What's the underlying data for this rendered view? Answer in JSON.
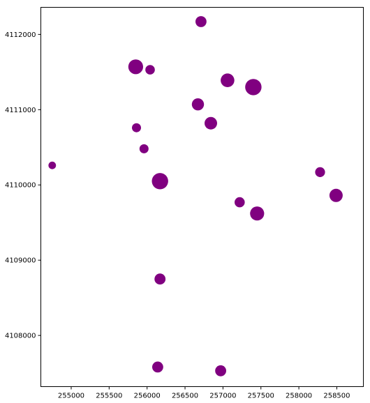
{
  "chart_data": {
    "type": "scatter",
    "title": "",
    "xlabel": "",
    "ylabel": "",
    "xlim": [
      254600,
      258850
    ],
    "ylim": [
      4107320,
      4112360
    ],
    "grid": false,
    "legend": "none",
    "marker_color": "#800080",
    "x_ticks": [
      255000,
      255500,
      256000,
      256500,
      257000,
      257500,
      258000,
      258500
    ],
    "x_tick_labels": [
      "255000",
      "255500",
      "256000",
      "256500",
      "257000",
      "257500",
      "258000",
      "258500"
    ],
    "y_ticks": [
      4108000,
      4109000,
      4110000,
      4111000,
      4112000
    ],
    "y_tick_labels": [
      "4108000",
      "4109000",
      "4110000",
      "4111000",
      "4112000"
    ],
    "size_unit": "m",
    "points": [
      {
        "x": 256710,
        "y": 4112170,
        "size": 145
      },
      {
        "x": 255850,
        "y": 4111570,
        "size": 195
      },
      {
        "x": 256040,
        "y": 4111530,
        "size": 125
      },
      {
        "x": 257060,
        "y": 4111390,
        "size": 180
      },
      {
        "x": 257400,
        "y": 4111300,
        "size": 215
      },
      {
        "x": 256670,
        "y": 4111070,
        "size": 160
      },
      {
        "x": 256840,
        "y": 4110820,
        "size": 165
      },
      {
        "x": 255860,
        "y": 4110760,
        "size": 120
      },
      {
        "x": 255960,
        "y": 4110480,
        "size": 120
      },
      {
        "x": 254750,
        "y": 4110260,
        "size": 100
      },
      {
        "x": 256170,
        "y": 4110050,
        "size": 215
      },
      {
        "x": 258280,
        "y": 4110170,
        "size": 130
      },
      {
        "x": 257220,
        "y": 4109770,
        "size": 135
      },
      {
        "x": 258490,
        "y": 4109860,
        "size": 175
      },
      {
        "x": 257450,
        "y": 4109620,
        "size": 185
      },
      {
        "x": 256170,
        "y": 4108750,
        "size": 145
      },
      {
        "x": 256140,
        "y": 4107580,
        "size": 145
      },
      {
        "x": 256970,
        "y": 4107530,
        "size": 145
      }
    ]
  }
}
